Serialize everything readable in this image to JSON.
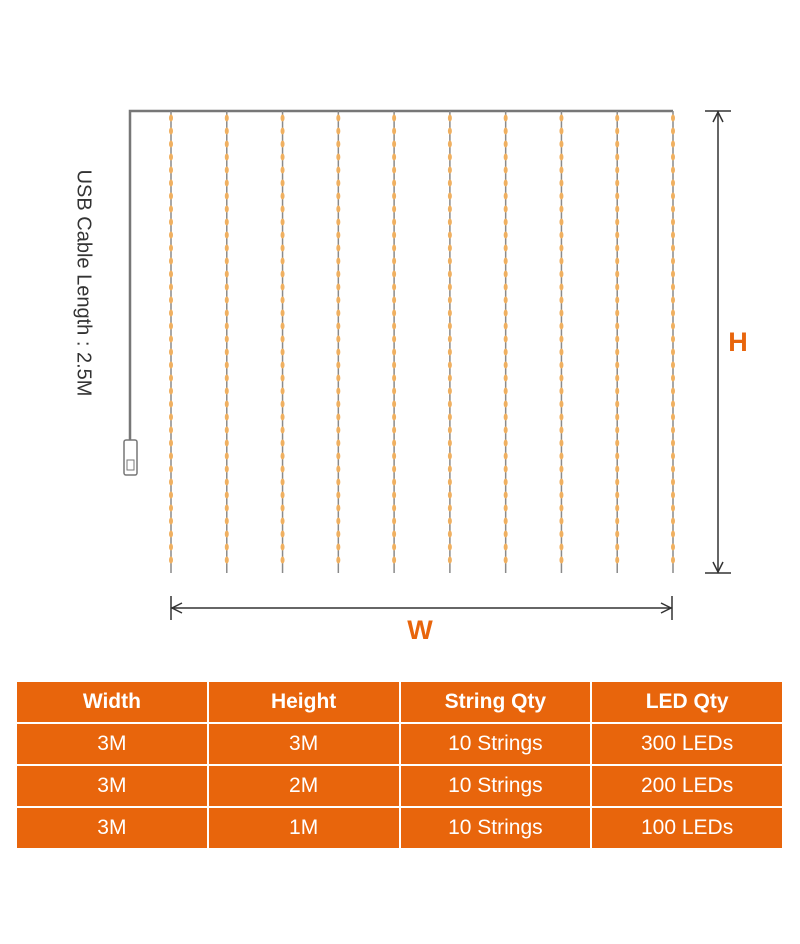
{
  "diagram": {
    "cable_label": "USB Cable Length : 2.5M",
    "height_label": "H",
    "width_label": "W"
  },
  "table": {
    "header": [
      "Width",
      "Height",
      "String Qty",
      "LED Qty"
    ],
    "rows": [
      [
        "3M",
        "3M",
        "10 Strings",
        "300 LEDs"
      ],
      [
        "3M",
        "2M",
        "10 Strings",
        "200 LEDs"
      ],
      [
        "3M",
        "1M",
        "10 Strings",
        "100 LEDs"
      ]
    ]
  }
}
